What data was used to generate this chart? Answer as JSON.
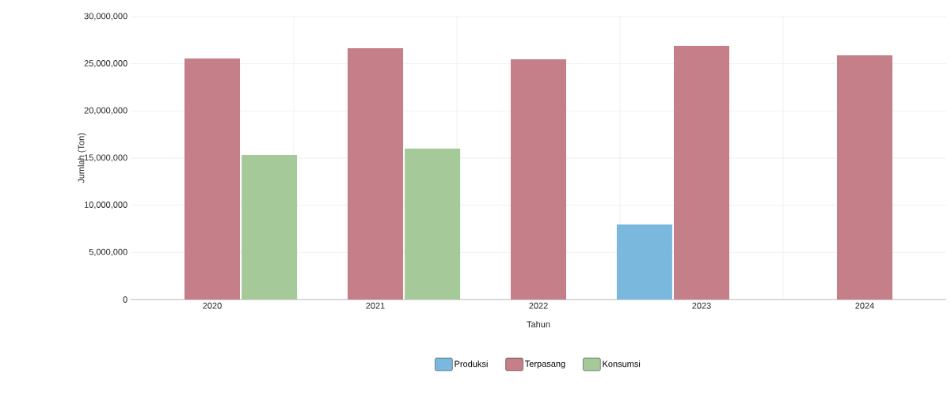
{
  "chart_data": {
    "type": "bar",
    "xlabel": "Tahun",
    "ylabel": "Jumlah (Ton)",
    "categories": [
      "2020",
      "2021",
      "2022",
      "2023",
      "2024"
    ],
    "series": [
      {
        "name": "Produksi",
        "color": "#7ab8de",
        "values": [
          0,
          0,
          0,
          7960000,
          0
        ]
      },
      {
        "name": "Terpasang",
        "color": "#c47f88",
        "values": [
          25560000,
          26650000,
          25470000,
          26900000,
          25900000
        ]
      },
      {
        "name": "Konsumsi",
        "color": "#a6c99a",
        "values": [
          15330000,
          16000000,
          0,
          0,
          0
        ]
      }
    ],
    "ylim": [
      0,
      30000000
    ],
    "yticks": [
      {
        "value": 0,
        "label": "0"
      },
      {
        "value": 5000000,
        "label": "5,000,000"
      },
      {
        "value": 10000000,
        "label": "10,000,000"
      },
      {
        "value": 15000000,
        "label": "15,000,000"
      },
      {
        "value": 20000000,
        "label": "20,000,000"
      },
      {
        "value": 25000000,
        "label": "25,000,000"
      },
      {
        "value": 30000000,
        "label": "30,000,000"
      }
    ],
    "grid": true,
    "legend": "bottom"
  }
}
